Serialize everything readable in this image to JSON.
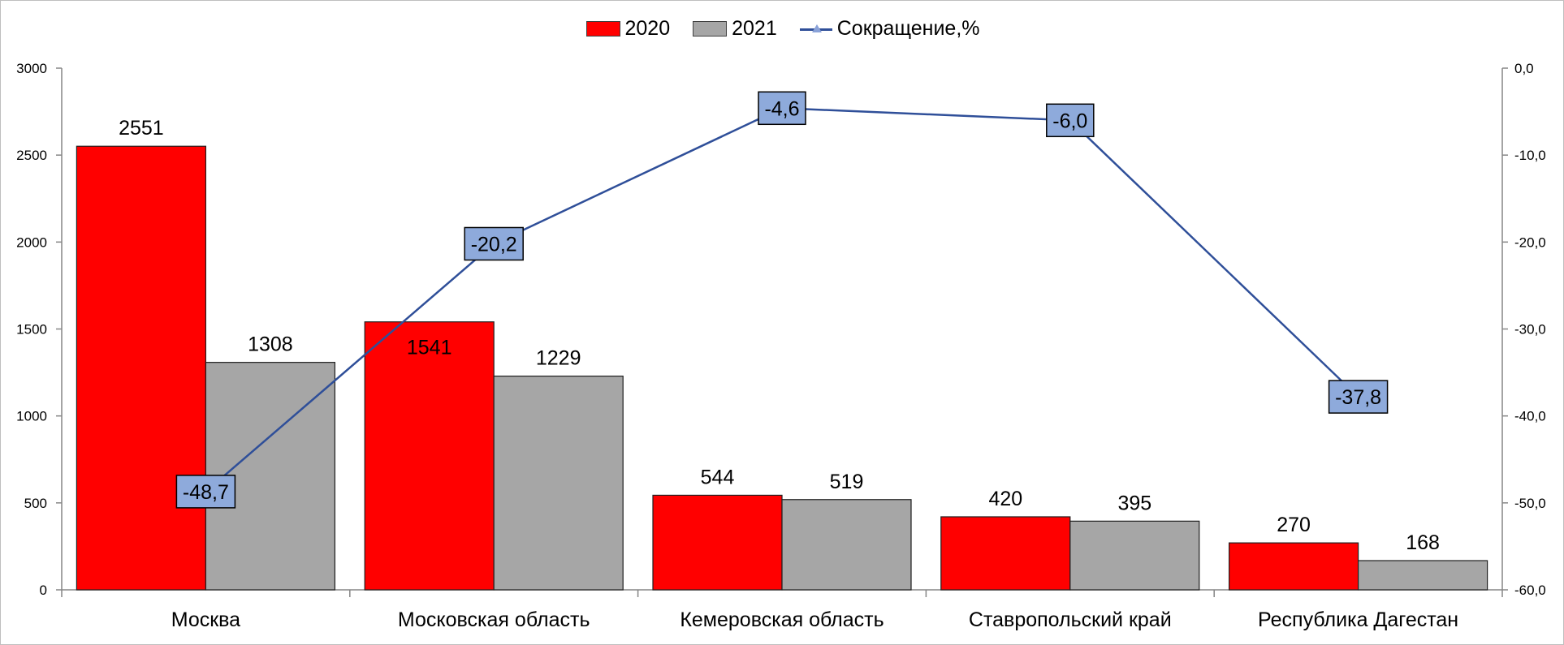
{
  "chart_data": {
    "type": "bar",
    "categories": [
      "Москва",
      "Московская область",
      "Кемеровская область",
      "Ставропольский край",
      "Республика Дагестан"
    ],
    "series": [
      {
        "name": "2020",
        "type": "bar",
        "axis": "left",
        "color": "#ff0000",
        "values": [
          2551,
          1541,
          544,
          420,
          270
        ]
      },
      {
        "name": "2021",
        "type": "bar",
        "axis": "left",
        "color": "#a6a6a6",
        "values": [
          1308,
          1229,
          519,
          395,
          168
        ]
      },
      {
        "name": "Сокращение,%",
        "type": "line",
        "axis": "right",
        "color": "#2f4f99",
        "label_fill": "#8eaadb",
        "values": [
          -48.7,
          -20.2,
          -4.6,
          -6.0,
          -37.8
        ]
      }
    ],
    "y_left": {
      "min": 0,
      "max": 3000,
      "ticks": [
        "0",
        "500",
        "1000",
        "1500",
        "2000",
        "2500",
        "3000"
      ]
    },
    "y_right": {
      "min": -60,
      "max": 0,
      "ticks": [
        "-60,0",
        "-50,0",
        "-40,0",
        "-30,0",
        "-20,0",
        "-10,0",
        "0,0"
      ]
    },
    "bar_labels": {
      "2020": [
        "2551",
        "1541",
        "544",
        "420",
        "270"
      ],
      "2021": [
        "1308",
        "1229",
        "519",
        "395",
        "168"
      ]
    },
    "line_labels": [
      "-48,7",
      "-20,2",
      "-4,6",
      "-6,0",
      "-37,8"
    ],
    "legend_position": "top-center",
    "grid": false
  },
  "legend": {
    "item1": "2020",
    "item2": "2021",
    "item3": "Сокращение,%"
  }
}
